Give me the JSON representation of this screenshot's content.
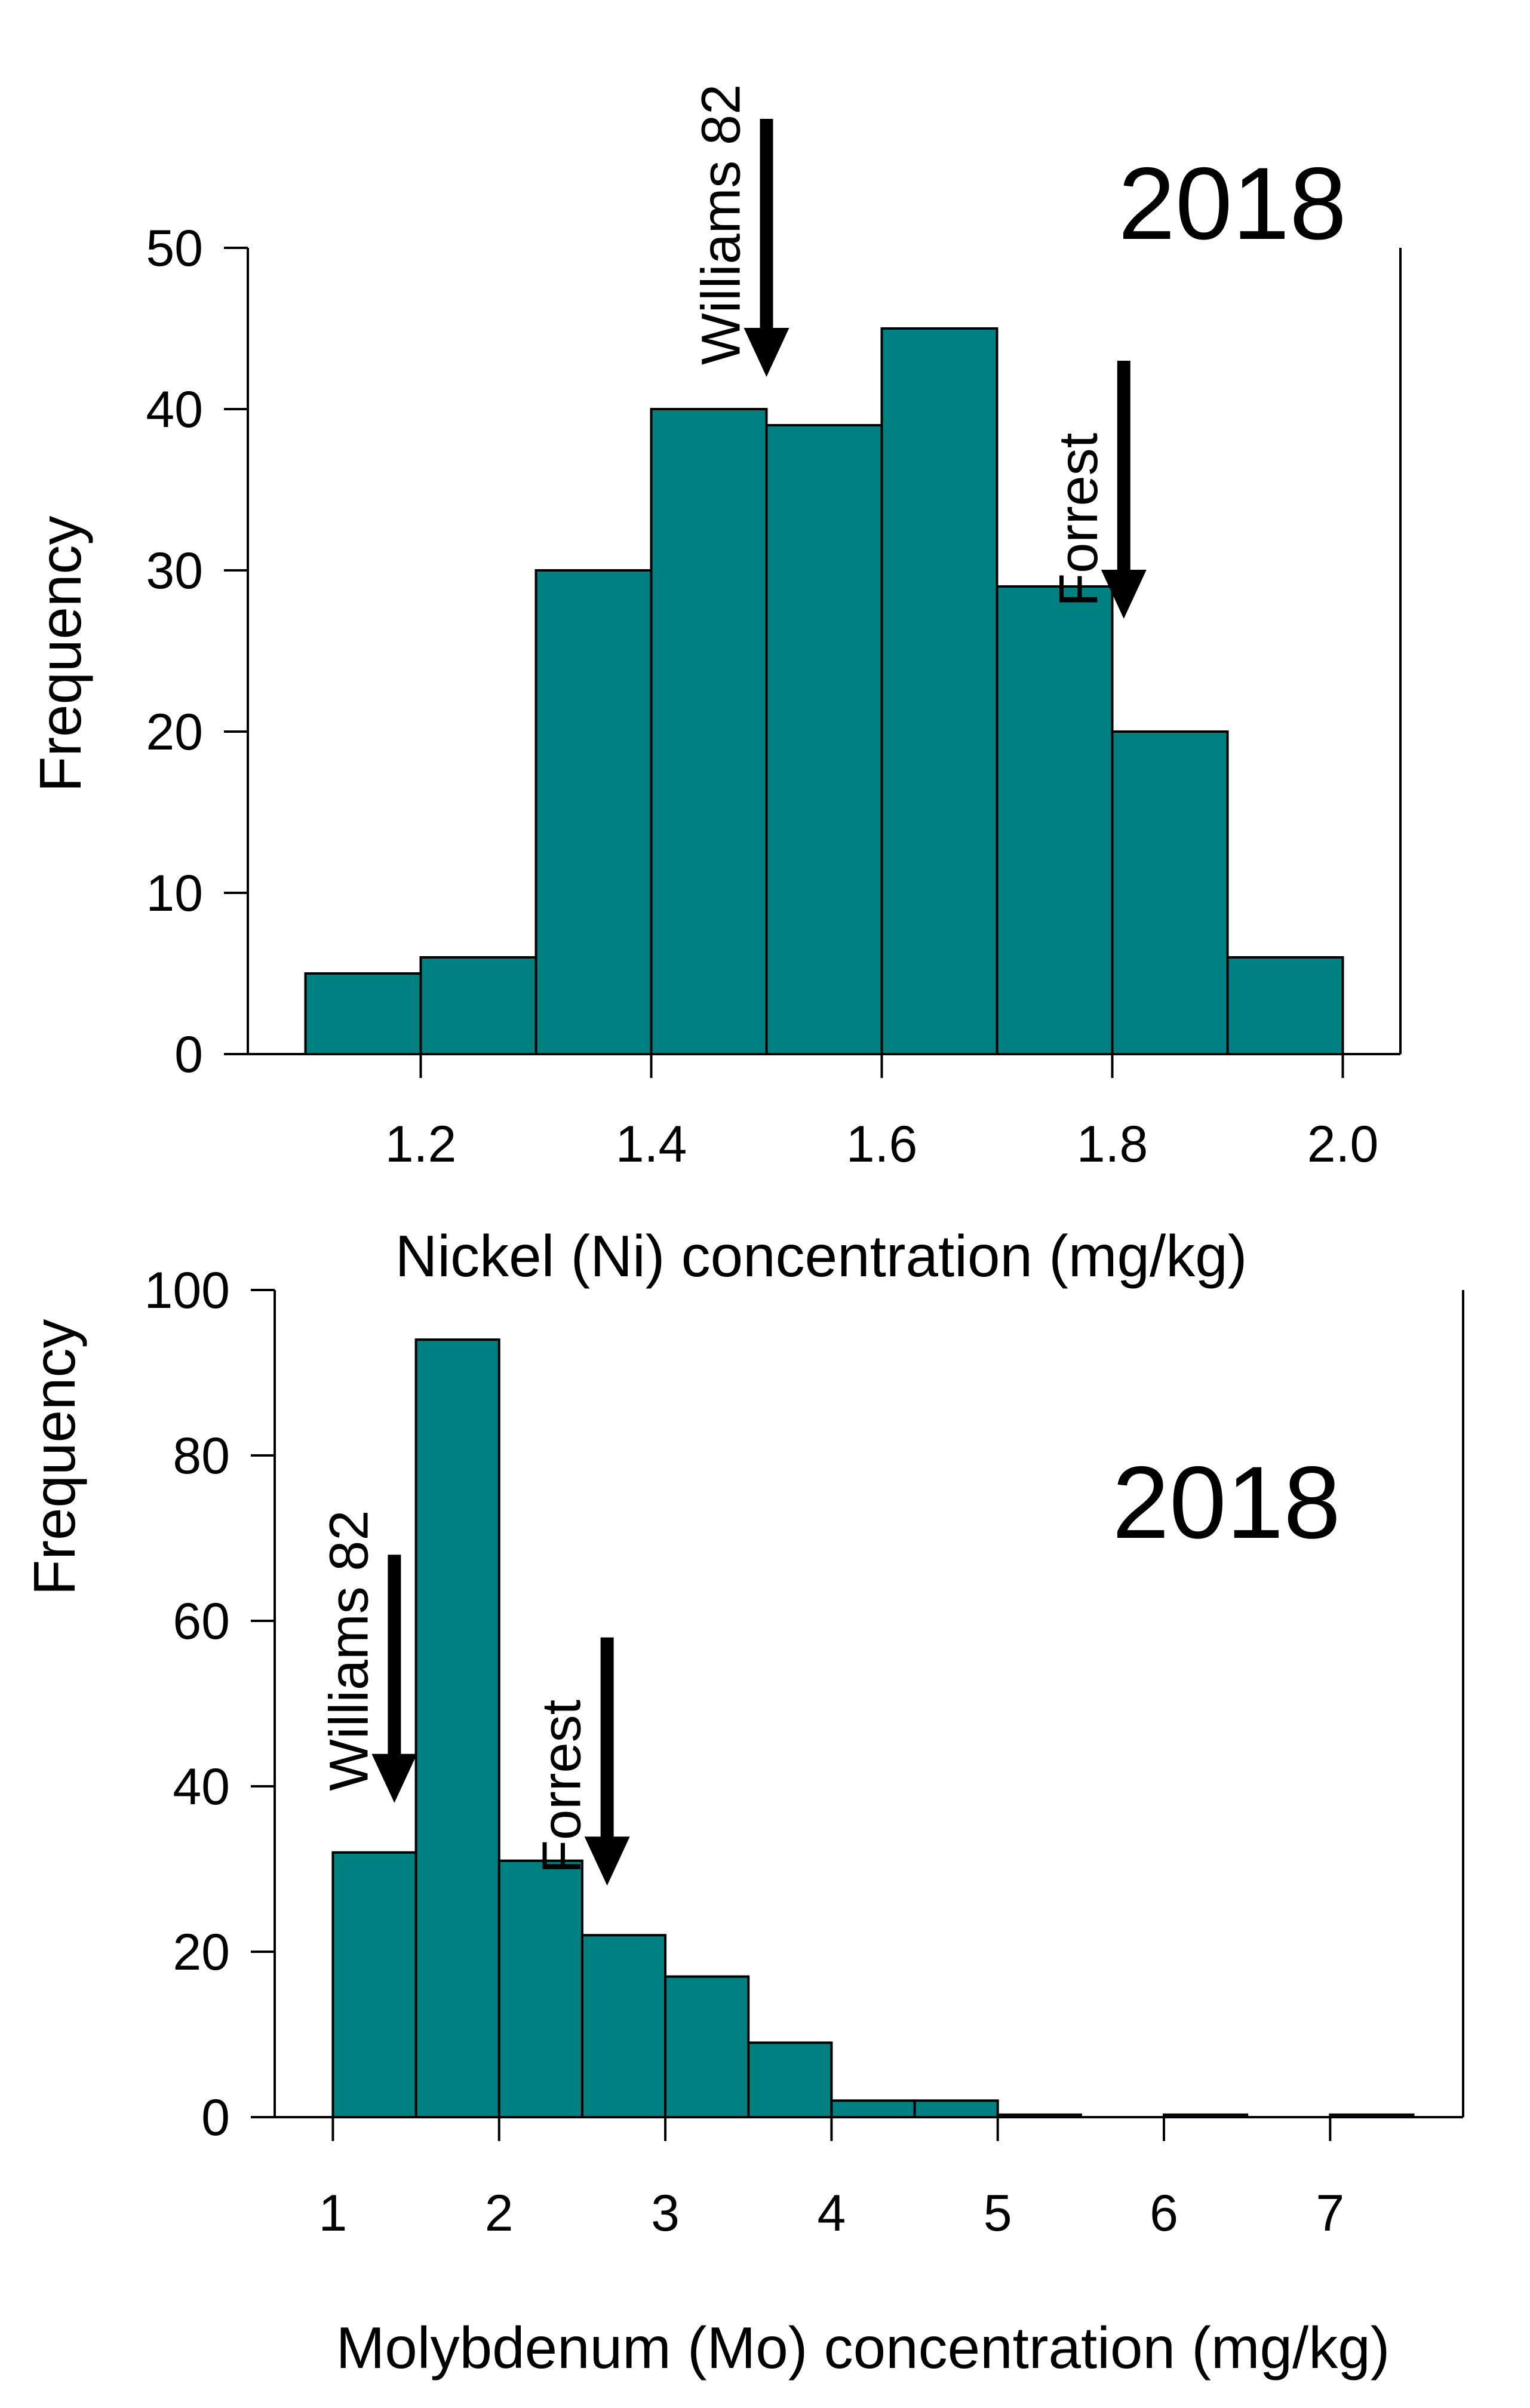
{
  "colors": {
    "bar_fill": "#008080",
    "bar_stroke": "#000000",
    "axis": "#000000",
    "background": "#ffffff"
  },
  "chart_data": [
    {
      "type": "bar",
      "histogram": true,
      "year_label": "2018",
      "xlabel": "Nickel (Ni) concentration (mg/kg)",
      "ylabel": "Frequency",
      "bin_edges": [
        1.1,
        1.2,
        1.3,
        1.4,
        1.5,
        1.6,
        1.7,
        1.8,
        1.9,
        2.0
      ],
      "values": [
        5,
        6,
        30,
        40,
        39,
        45,
        29,
        20,
        6
      ],
      "xlim": [
        1.05,
        2.05
      ],
      "ylim": [
        0,
        50
      ],
      "x_ticks": [
        "1.2",
        "1.4",
        "1.6",
        "1.8",
        "2.0"
      ],
      "x_tick_values": [
        1.2,
        1.4,
        1.6,
        1.8,
        2.0
      ],
      "y_ticks": [
        "0",
        "10",
        "20",
        "30",
        "40",
        "50"
      ],
      "y_tick_values": [
        0,
        10,
        20,
        30,
        40,
        50
      ],
      "annotations": [
        {
          "label": "Williams 82",
          "x": 1.5,
          "arrow_from": 58,
          "arrow_to": 42
        },
        {
          "label": "Forrest",
          "x": 1.81,
          "arrow_from": 43,
          "arrow_to": 27
        }
      ],
      "grid": false
    },
    {
      "type": "bar",
      "histogram": true,
      "year_label": "2018",
      "xlabel": "Molybdenum (Mo) concentration (mg/kg)",
      "ylabel": "Frequency",
      "bin_edges": [
        1.0,
        1.5,
        2.0,
        2.5,
        3.0,
        3.5,
        4.0,
        4.5,
        5.0,
        5.5,
        6.0,
        6.5,
        7.0,
        7.5
      ],
      "values": [
        32,
        94,
        31,
        22,
        17,
        9,
        2,
        2,
        0.3,
        0,
        0.3,
        0,
        0.3
      ],
      "xlim": [
        0.65,
        7.8
      ],
      "ylim": [
        0,
        100
      ],
      "x_ticks": [
        "1",
        "2",
        "3",
        "4",
        "5",
        "6",
        "7"
      ],
      "x_tick_values": [
        1,
        2,
        3,
        4,
        5,
        6,
        7
      ],
      "y_ticks": [
        "0",
        "20",
        "40",
        "60",
        "80",
        "100"
      ],
      "y_tick_values": [
        0,
        20,
        40,
        60,
        80,
        100
      ],
      "annotations": [
        {
          "label": "Williams 82",
          "x": 1.37,
          "arrow_from": 68,
          "arrow_to": 38
        },
        {
          "label": "Forrest",
          "x": 2.65,
          "arrow_from": 58,
          "arrow_to": 28
        }
      ],
      "grid": false
    }
  ]
}
